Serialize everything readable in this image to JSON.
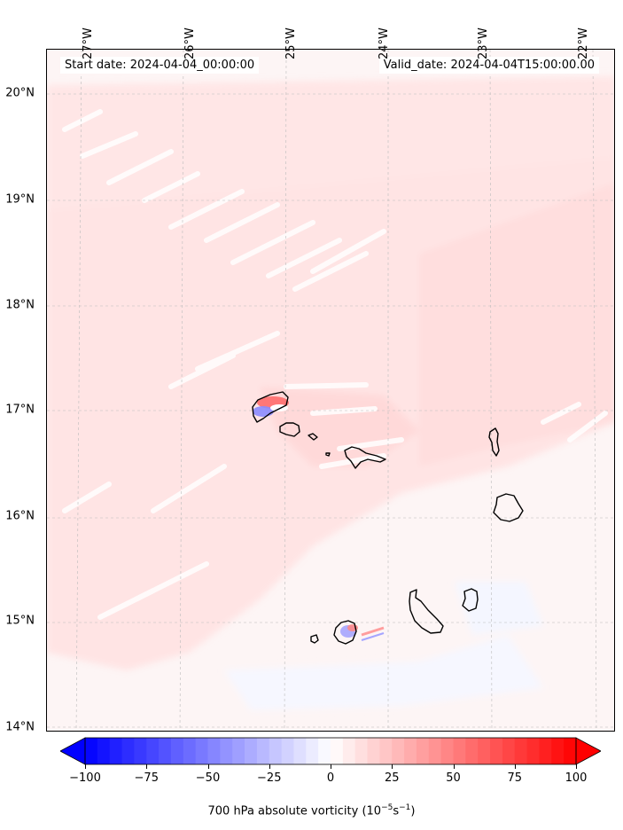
{
  "header": {
    "start_date": "Start date: 2024-04-04_00:00:00",
    "valid_date": "Valid_date: 2024-04-04T15:00:00.00"
  },
  "map": {
    "longitude_labels": [
      "27°W",
      "26°W",
      "25°W",
      "24°W",
      "23°W",
      "22°W"
    ],
    "latitude_labels": [
      "20°N",
      "19°N",
      "18°N",
      "17°N",
      "16°N",
      "15°N",
      "14°N"
    ],
    "projection_extent": {
      "lon_min": -27.35,
      "lon_max": -21.9,
      "lat_min": 13.95,
      "lat_max": 20.45
    },
    "gridlines": true,
    "colors": {
      "positive": "#ff0000",
      "negative": "#0000ff",
      "zero": "#ffffff",
      "coastline": "#000000"
    }
  },
  "colorbar": {
    "label": "700 hPa absolute vorticity (10⁻⁵s⁻¹)",
    "label_base": "700 hPa absolute vorticity (10",
    "label_exp1": "−5",
    "label_mid": "s",
    "label_exp2": "−1",
    "label_end": ")",
    "ticks": [
      "−100",
      "−75",
      "−50",
      "−25",
      "0",
      "25",
      "50",
      "75",
      "100"
    ],
    "tick_values": [
      -100,
      -75,
      -50,
      -25,
      0,
      25,
      50,
      75,
      100
    ],
    "min": -100,
    "max": 100,
    "extend": "both",
    "colormap": "bwr"
  }
}
